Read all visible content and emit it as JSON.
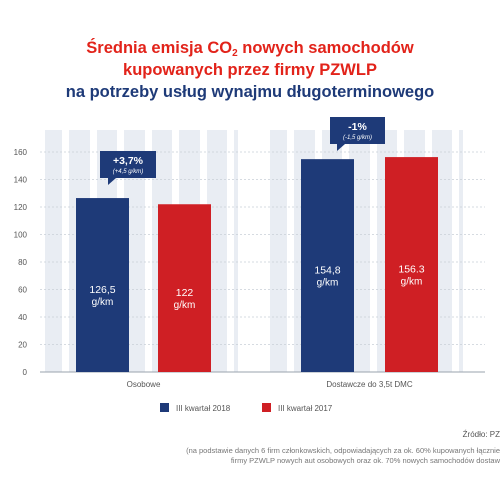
{
  "title": {
    "line1_pre": "Średnia emisja CO",
    "line1_sub": "2",
    "line1_post": " nowych samochodów",
    "line2": "kupowanych przez firmy PZWLP",
    "line3": "na potrzeby usług wynajmu długoterminowego"
  },
  "chart_data": {
    "type": "bar",
    "categories": [
      "Osobowe",
      "Dostawcze do 3,5t DMC"
    ],
    "series": [
      {
        "name": "III kwartał 2018",
        "color": "#1e3a78",
        "values": [
          126.5,
          154.8
        ],
        "labels": [
          "126,5",
          "154,8"
        ]
      },
      {
        "name": "III kwartał 2017",
        "color": "#cf1f24",
        "values": [
          122,
          156.3
        ],
        "labels": [
          "122",
          "156.3"
        ]
      }
    ],
    "unit": "g/km",
    "yticks": [
      0,
      20,
      40,
      60,
      80,
      100,
      120,
      140,
      160
    ],
    "ylim": [
      0,
      170
    ],
    "grid": true,
    "legend_position": "bottom",
    "change_callouts": [
      {
        "category": "Osobowe",
        "main": "+3,7%",
        "sub": "(+4,5 g/km)"
      },
      {
        "category": "Dostawcze do 3,5t DMC",
        "main": "-1%",
        "sub": "(-1,5 g/km)"
      }
    ]
  },
  "footer": {
    "source": "Źródło: PZ",
    "note1": "(na podstawie danych 6 firm członkowskich, odpowiadających za ok. 60% kupowanych łącznie",
    "note2": "firmy PZWLP nowych aut osobowych oraz ok. 70% nowych samochodów dostaw"
  }
}
